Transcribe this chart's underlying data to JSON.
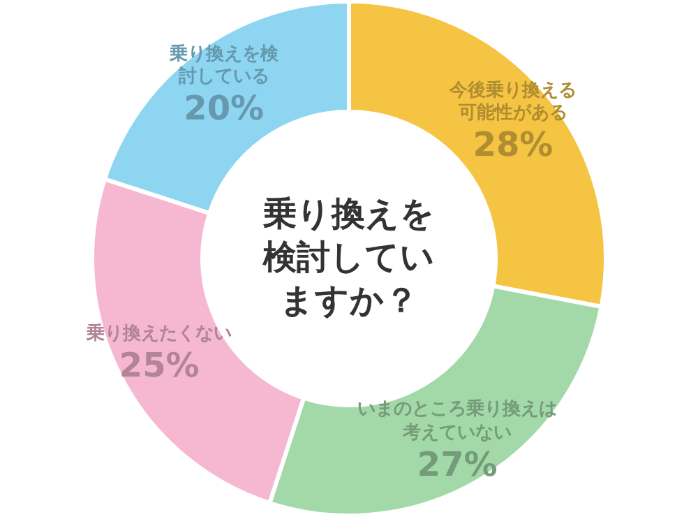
{
  "chart_data": {
    "type": "donut",
    "title": "乗り換えを検討していますか？",
    "categories": [
      "今後乗り換える可能性がある",
      "いまのところ乗り換えは考えていない",
      "乗り換えたくない",
      "乗り換えを検討している"
    ],
    "values": [
      28,
      27,
      25,
      20
    ],
    "colors": [
      "#f5c443",
      "#a3d9a9",
      "#f6b8d0",
      "#8ed5f1"
    ],
    "value_labels": [
      "28%",
      "27%",
      "25%",
      "20%"
    ]
  }
}
